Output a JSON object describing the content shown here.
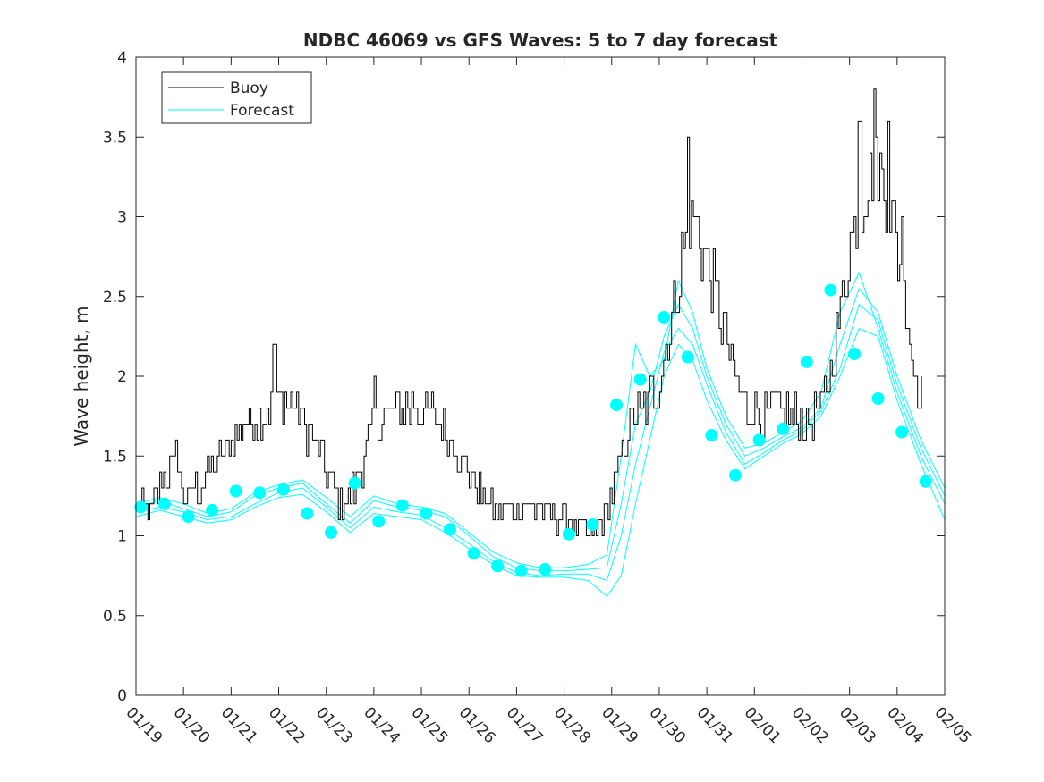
{
  "chart_data": {
    "type": "line",
    "title": "NDBC 46069 vs GFS Waves: 5 to 7 day forecast",
    "xlabel": "",
    "ylabel": "Wave height, m",
    "xlim": [
      0,
      17
    ],
    "ylim": [
      0,
      4
    ],
    "grid": false,
    "legend_position": "top-left",
    "x_tick_labels": [
      "01/19",
      "01/20",
      "01/21",
      "01/22",
      "01/23",
      "01/24",
      "01/25",
      "01/26",
      "01/27",
      "01/28",
      "01/29",
      "01/30",
      "01/31",
      "02/01",
      "02/02",
      "02/03",
      "02/04",
      "02/05"
    ],
    "y_tick_labels": [
      "0",
      "0.5",
      "1",
      "1.5",
      "2",
      "2.5",
      "3",
      "3.5",
      "4"
    ],
    "y_ticks": [
      0,
      0.5,
      1,
      1.5,
      2,
      2.5,
      3,
      3.5,
      4
    ],
    "legend": {
      "buoy": "Buoy",
      "forecast": "Forecast"
    },
    "colors": {
      "buoy": "#000000",
      "forecast": "#00FFFF",
      "axis": "#262626"
    },
    "buoy": {
      "name": "Buoy",
      "x_start": 0.0,
      "x_step": 0.0417,
      "anchors": [
        [
          0.0,
          1.2
        ],
        [
          0.25,
          1.15
        ],
        [
          0.5,
          1.3
        ],
        [
          0.8,
          1.45
        ],
        [
          1.0,
          1.25
        ],
        [
          1.3,
          1.3
        ],
        [
          1.6,
          1.4
        ],
        [
          1.9,
          1.55
        ],
        [
          2.2,
          1.7
        ],
        [
          2.6,
          1.75
        ],
        [
          2.9,
          1.8
        ],
        [
          3.1,
          1.85
        ],
        [
          3.4,
          1.8
        ],
        [
          3.7,
          1.6
        ],
        [
          4.0,
          1.4
        ],
        [
          4.3,
          1.2
        ],
        [
          4.6,
          1.3
        ],
        [
          4.9,
          1.6
        ],
        [
          5.2,
          1.75
        ],
        [
          5.5,
          1.8
        ],
        [
          5.9,
          1.8
        ],
        [
          6.3,
          1.75
        ],
        [
          6.6,
          1.6
        ],
        [
          7.0,
          1.4
        ],
        [
          7.4,
          1.2
        ],
        [
          7.8,
          1.15
        ],
        [
          8.2,
          1.2
        ],
        [
          8.6,
          1.15
        ],
        [
          9.0,
          1.1
        ],
        [
          9.3,
          1.05
        ],
        [
          9.6,
          1.0
        ],
        [
          9.85,
          1.1
        ],
        [
          10.1,
          1.4
        ],
        [
          10.4,
          1.7
        ],
        [
          10.7,
          1.8
        ],
        [
          11.0,
          2.0
        ],
        [
          11.3,
          2.4
        ],
        [
          11.5,
          2.8
        ],
        [
          11.7,
          3.0
        ],
        [
          11.9,
          2.8
        ],
        [
          12.2,
          2.5
        ],
        [
          12.5,
          2.1
        ],
        [
          12.8,
          1.8
        ],
        [
          13.2,
          1.75
        ],
        [
          13.5,
          1.8
        ],
        [
          13.8,
          1.75
        ],
        [
          14.1,
          1.7
        ],
        [
          14.4,
          1.8
        ],
        [
          14.7,
          2.2
        ],
        [
          15.0,
          2.8
        ],
        [
          15.3,
          3.2
        ],
        [
          15.6,
          3.3
        ],
        [
          15.8,
          3.1
        ],
        [
          16.0,
          2.8
        ],
        [
          16.2,
          2.4
        ],
        [
          16.38,
          2.0
        ],
        [
          16.55,
          1.8
        ]
      ],
      "spikes": [
        [
          0.85,
          1.6
        ],
        [
          2.9,
          2.2
        ],
        [
          5.0,
          1.95
        ],
        [
          11.6,
          3.5
        ],
        [
          15.2,
          3.6
        ],
        [
          15.5,
          3.8
        ],
        [
          15.8,
          3.6
        ],
        [
          16.1,
          3.0
        ]
      ]
    },
    "forecast_runs": [
      {
        "name": "Forecast",
        "x": [
          0.0,
          0.5,
          1.0,
          1.5,
          2.0,
          2.5,
          3.0,
          3.5,
          4.0,
          4.5,
          5.0,
          5.5,
          6.0,
          6.5,
          7.0,
          7.5,
          8.0,
          8.5,
          9.0,
          9.5,
          9.9,
          10.2,
          10.5,
          10.8,
          11.1,
          11.4,
          11.7,
          12.0,
          12.4,
          12.8,
          13.2,
          13.6,
          14.0,
          14.4,
          14.8,
          15.2,
          15.6,
          16.0,
          16.5,
          17.0
        ],
        "y": [
          1.18,
          1.22,
          1.17,
          1.12,
          1.15,
          1.25,
          1.3,
          1.33,
          1.2,
          1.08,
          1.22,
          1.18,
          1.16,
          1.12,
          1.0,
          0.87,
          0.8,
          0.78,
          0.78,
          0.79,
          0.8,
          1.2,
          1.7,
          1.9,
          2.25,
          2.45,
          2.3,
          2.0,
          1.7,
          1.5,
          1.55,
          1.62,
          1.68,
          1.8,
          2.2,
          2.55,
          2.4,
          2.0,
          1.6,
          1.3
        ]
      },
      {
        "name": "Forecast",
        "x": [
          0.0,
          0.5,
          1.0,
          1.5,
          2.0,
          2.5,
          3.0,
          3.5,
          4.0,
          4.5,
          5.0,
          5.5,
          6.0,
          6.5,
          7.0,
          7.5,
          8.0,
          8.5,
          9.0,
          9.5,
          9.9,
          10.2,
          10.5,
          10.8,
          11.1,
          11.4,
          11.7,
          12.0,
          12.4,
          12.8,
          13.2,
          13.6,
          14.0,
          14.4,
          14.8,
          15.2,
          15.6,
          16.0,
          16.5,
          17.0
        ],
        "y": [
          1.15,
          1.18,
          1.15,
          1.1,
          1.12,
          1.2,
          1.27,
          1.3,
          1.18,
          1.05,
          1.18,
          1.15,
          1.13,
          1.05,
          0.95,
          0.84,
          0.77,
          0.75,
          0.76,
          0.76,
          0.72,
          1.0,
          1.45,
          1.8,
          2.15,
          2.3,
          2.2,
          1.95,
          1.65,
          1.45,
          1.52,
          1.6,
          1.66,
          1.78,
          2.05,
          2.45,
          2.35,
          1.95,
          1.55,
          1.25
        ]
      },
      {
        "name": "Forecast",
        "x": [
          0.0,
          0.5,
          1.0,
          1.5,
          2.0,
          2.5,
          3.0,
          3.5,
          4.0,
          4.5,
          5.0,
          5.5,
          6.0,
          6.5,
          7.0,
          7.5,
          8.0,
          8.5,
          9.0,
          9.5,
          9.9,
          10.2,
          10.5,
          10.8,
          11.1,
          11.4,
          11.7,
          12.0,
          12.4,
          12.8,
          13.2,
          13.6,
          14.0,
          14.4,
          14.8,
          15.2,
          15.6,
          16.0,
          16.5,
          17.0
        ],
        "y": [
          1.2,
          1.24,
          1.2,
          1.14,
          1.17,
          1.27,
          1.32,
          1.35,
          1.24,
          1.12,
          1.25,
          1.2,
          1.18,
          1.14,
          1.02,
          0.9,
          0.83,
          0.8,
          0.8,
          0.82,
          0.88,
          1.5,
          2.2,
          2.0,
          2.1,
          2.6,
          2.4,
          2.05,
          1.75,
          1.55,
          1.58,
          1.65,
          1.72,
          1.9,
          2.4,
          2.65,
          2.3,
          1.9,
          1.5,
          1.2
        ]
      },
      {
        "name": "Forecast",
        "x": [
          0.0,
          0.5,
          1.0,
          1.5,
          2.0,
          2.5,
          3.0,
          3.5,
          4.0,
          4.5,
          5.0,
          5.5,
          6.0,
          6.5,
          7.0,
          7.5,
          8.0,
          8.5,
          9.0,
          9.5,
          9.9,
          10.2,
          10.5,
          10.8,
          11.1,
          11.4,
          11.7,
          12.0,
          12.4,
          12.8,
          13.2,
          13.6,
          14.0,
          14.4,
          14.8,
          15.2,
          15.6,
          16.0,
          16.5,
          17.0
        ],
        "y": [
          1.12,
          1.16,
          1.12,
          1.08,
          1.1,
          1.18,
          1.24,
          1.26,
          1.15,
          1.02,
          1.14,
          1.12,
          1.1,
          1.02,
          0.92,
          0.82,
          0.75,
          0.74,
          0.74,
          0.72,
          0.62,
          0.75,
          1.2,
          1.6,
          2.0,
          2.2,
          2.1,
          1.85,
          1.6,
          1.42,
          1.5,
          1.58,
          1.64,
          1.75,
          2.0,
          2.3,
          2.25,
          1.85,
          1.45,
          1.1
        ]
      }
    ],
    "forecast_markers": {
      "x": [
        0.1,
        0.6,
        1.1,
        1.6,
        2.1,
        2.6,
        3.1,
        3.6,
        4.1,
        4.6,
        5.1,
        5.6,
        6.1,
        6.6,
        7.1,
        7.6,
        8.1,
        8.6,
        9.1,
        9.6,
        10.1,
        10.6,
        11.1,
        11.6,
        12.1,
        12.6,
        13.1,
        13.6,
        14.1,
        14.6,
        15.1,
        15.6,
        16.1,
        16.6
      ],
      "y": [
        1.18,
        1.2,
        1.12,
        1.16,
        1.28,
        1.27,
        1.29,
        1.14,
        1.02,
        1.33,
        1.09,
        1.19,
        1.14,
        1.04,
        0.89,
        0.81,
        0.78,
        0.79,
        1.01,
        1.07,
        1.82,
        1.98,
        2.37,
        2.12,
        1.63,
        1.38,
        1.6,
        1.67,
        2.09,
        2.54,
        2.14,
        1.86,
        1.65,
        1.34
      ]
    }
  }
}
